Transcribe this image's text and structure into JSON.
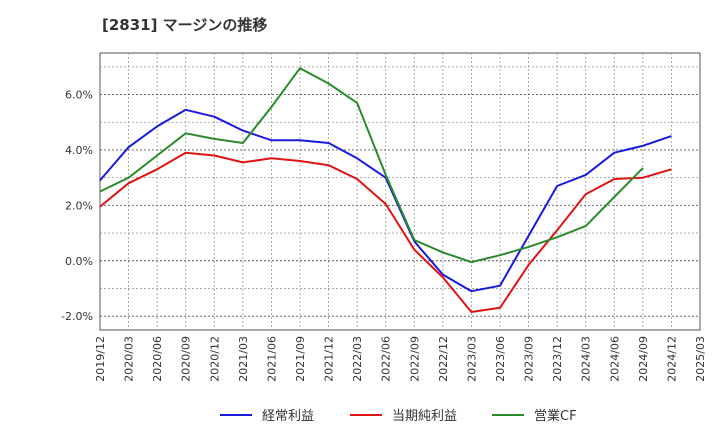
{
  "chart_data": {
    "type": "line",
    "title": "[2831]  マージンの推移",
    "x": [
      "2019/12",
      "2020/03",
      "2020/06",
      "2020/09",
      "2020/12",
      "2021/03",
      "2021/06",
      "2021/09",
      "2021/12",
      "2022/03",
      "2022/06",
      "2022/09",
      "2022/12",
      "2023/03",
      "2023/06",
      "2023/09",
      "2023/12",
      "2024/03",
      "2024/06",
      "2024/09",
      "2024/12",
      "2025/03"
    ],
    "ylim": [
      -2.5,
      7.5
    ],
    "yticks": [
      -2.0,
      0.0,
      2.0,
      4.0,
      6.0
    ],
    "ytick_labels": [
      "-2.0%",
      "0.0%",
      "2.0%",
      "4.0%",
      "6.0%"
    ],
    "grid": true,
    "legend_position": "bottom",
    "series": [
      {
        "name": "経常利益",
        "color": "#1a1adb",
        "values": [
          2.9,
          4.1,
          4.85,
          5.45,
          5.2,
          4.7,
          4.35,
          4.35,
          4.25,
          3.7,
          3.0,
          0.7,
          -0.5,
          -1.1,
          -0.9,
          0.9,
          2.7,
          3.1,
          3.9,
          4.15,
          4.5,
          null
        ]
      },
      {
        "name": "当期純利益",
        "color": "#e01414",
        "values": [
          1.95,
          2.8,
          3.3,
          3.9,
          3.8,
          3.55,
          3.7,
          3.6,
          3.45,
          2.95,
          2.05,
          0.4,
          -0.6,
          -1.85,
          -1.7,
          -0.15,
          1.1,
          2.4,
          2.95,
          3.0,
          3.3,
          null
        ]
      },
      {
        "name": "営業CF",
        "color": "#2b8a2b",
        "values": [
          2.5,
          3.0,
          3.8,
          4.6,
          4.4,
          4.25,
          5.55,
          6.95,
          6.4,
          5.7,
          3.1,
          0.75,
          0.3,
          -0.05,
          0.2,
          0.5,
          0.85,
          1.25,
          2.3,
          3.35,
          null,
          null
        ]
      }
    ]
  }
}
